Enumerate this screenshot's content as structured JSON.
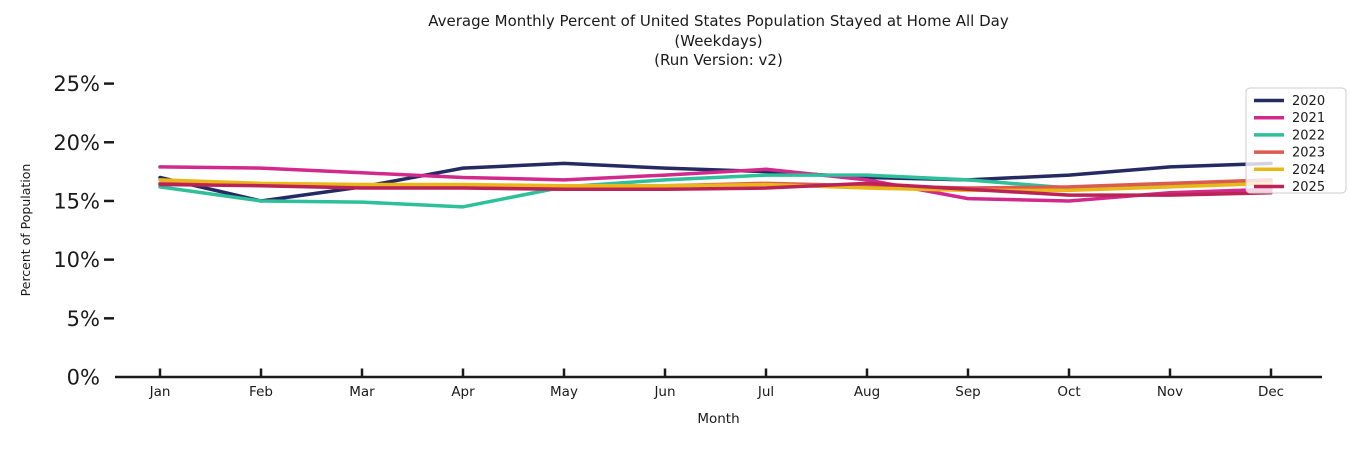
{
  "chart_data": {
    "type": "line",
    "title": "Average Monthly Percent of United States Population Stayed at Home All Day",
    "subtitle": "(Weekdays)",
    "run_version": "(Run Version: v2)",
    "xlabel": "Month",
    "ylabel": "Percent of Population",
    "x_categories": [
      "Jan",
      "Feb",
      "Mar",
      "Apr",
      "May",
      "Jun",
      "Jul",
      "Aug",
      "Sep",
      "Oct",
      "Nov",
      "Dec"
    ],
    "y_tick_values": [
      0,
      5,
      10,
      15,
      20,
      25
    ],
    "y_tick_labels": [
      "0%",
      "5%",
      "10%",
      "15%",
      "20%",
      "25%"
    ],
    "ylim": [
      0,
      25
    ],
    "grid": false,
    "legend_position": "upper right",
    "axis_color": "#1a1a1a",
    "series": [
      {
        "name": "2020",
        "color": "#262a63",
        "values": [
          17.0,
          15.0,
          16.2,
          17.8,
          18.2,
          17.8,
          17.5,
          17.0,
          16.8,
          17.2,
          17.9,
          18.2
        ]
      },
      {
        "name": "2021",
        "color": "#d12a8c",
        "values": [
          17.9,
          17.8,
          17.4,
          17.0,
          16.8,
          17.2,
          17.7,
          16.8,
          15.2,
          15.0,
          15.7,
          16.0
        ]
      },
      {
        "name": "2022",
        "color": "#2ebf9b",
        "values": [
          16.2,
          15.0,
          14.9,
          14.5,
          16.2,
          16.8,
          17.2,
          17.2,
          16.8,
          16.1,
          16.3,
          16.6
        ]
      },
      {
        "name": "2023",
        "color": "#dc5a50",
        "values": [
          16.5,
          16.4,
          16.3,
          16.2,
          16.1,
          16.3,
          16.5,
          16.3,
          16.1,
          16.2,
          16.5,
          16.8
        ]
      },
      {
        "name": "2024",
        "color": "#e9b818",
        "values": [
          16.8,
          16.5,
          16.4,
          16.4,
          16.3,
          16.3,
          16.4,
          16.1,
          15.9,
          15.9,
          16.2,
          16.5
        ]
      },
      {
        "name": "2025",
        "color": "#bb2357",
        "values": [
          16.4,
          16.3,
          16.1,
          16.1,
          16.0,
          16.0,
          16.1,
          16.5,
          16.0,
          15.5,
          15.5,
          15.7
        ]
      }
    ]
  }
}
